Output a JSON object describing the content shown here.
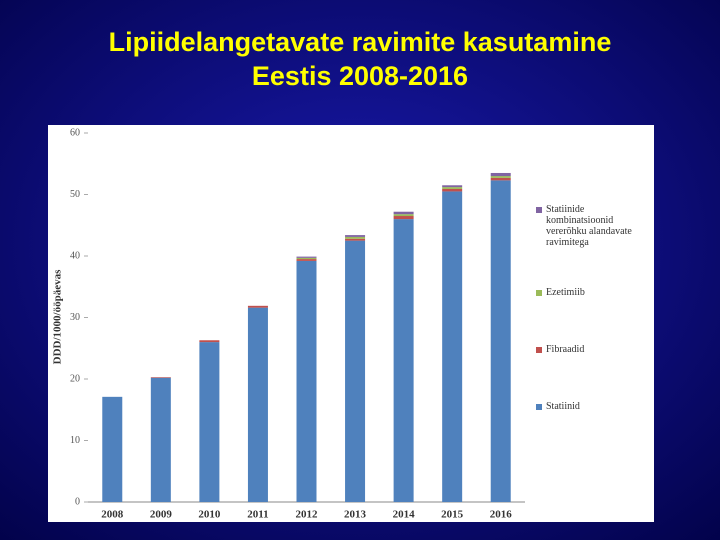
{
  "title": [
    "Lipiidelangetavate ravimite kasutamine",
    "Eestis 2008-2016"
  ],
  "chart_data": {
    "type": "stacked_bar",
    "y_label": "DDD/1000/ööpäevas",
    "categories": [
      "2008",
      "2009",
      "2010",
      "2011",
      "2012",
      "2013",
      "2014",
      "2015",
      "2016"
    ],
    "series": [
      {
        "name": "Statiinid",
        "color": "#4f81bd",
        "values": [
          17.1,
          20.2,
          26.0,
          31.6,
          39.2,
          42.5,
          46.0,
          50.5,
          52.3
        ]
      },
      {
        "name": "Fibraadid",
        "color": "#c0504d",
        "values": [
          0.0,
          0.1,
          0.3,
          0.3,
          0.3,
          0.3,
          0.5,
          0.4,
          0.4
        ]
      },
      {
        "name": "Ezetimiib",
        "color": "#9bbb59",
        "values": [
          0.0,
          0.0,
          0.0,
          0.0,
          0.2,
          0.3,
          0.3,
          0.3,
          0.3
        ]
      },
      {
        "name": "Statiinide kombinatsioonid vererõhku alandavate ravimitega",
        "color": "#8064a2",
        "values": [
          0.0,
          0.0,
          0.0,
          0.0,
          0.2,
          0.3,
          0.4,
          0.3,
          0.5
        ]
      }
    ],
    "ylim": [
      0,
      60
    ],
    "yticks": [
      0,
      10,
      20,
      30,
      40,
      50,
      60
    ],
    "grid": false,
    "legend": "right"
  }
}
